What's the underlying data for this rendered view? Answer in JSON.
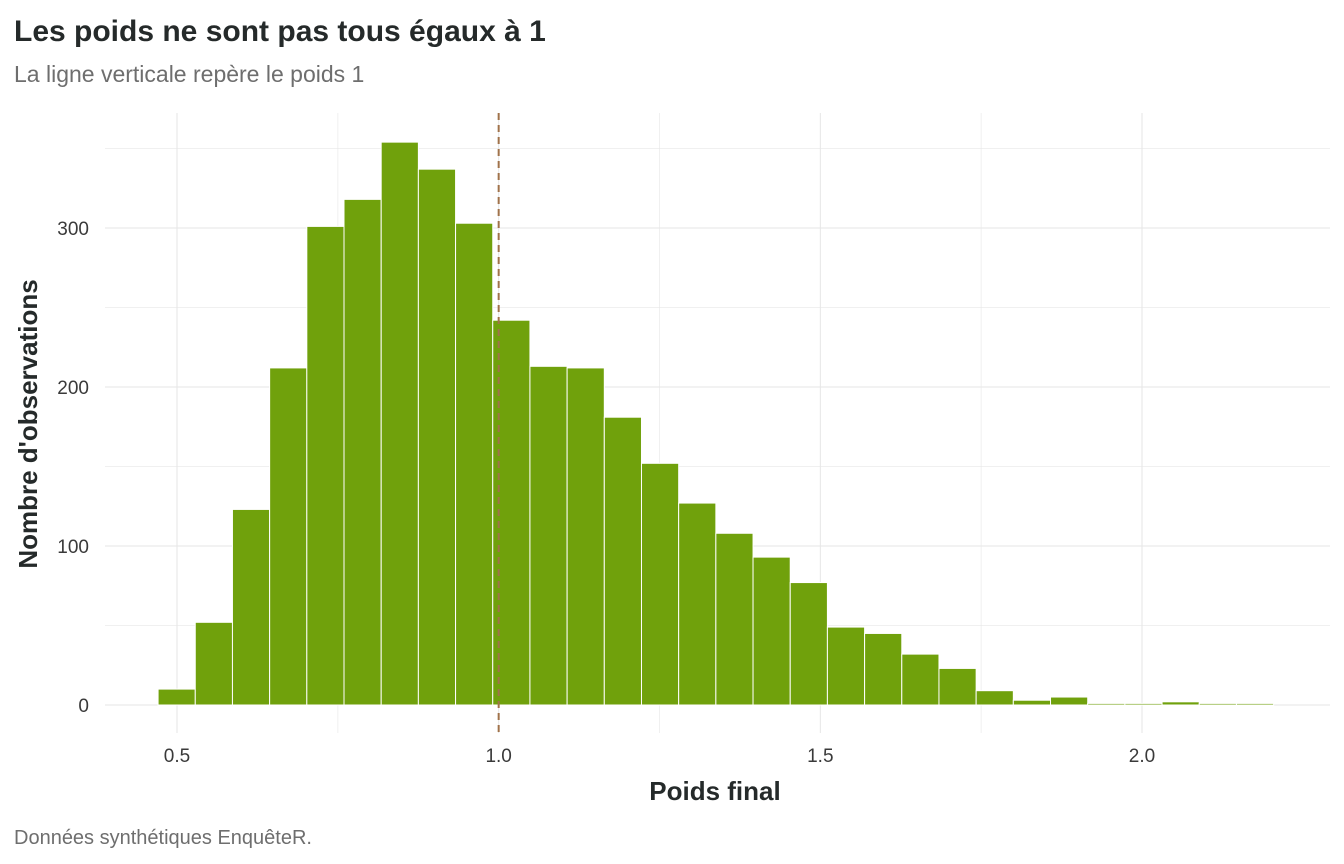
{
  "chart_data": {
    "type": "bar",
    "title": "Les poids ne sont pas tous égaux à 1",
    "subtitle": "La ligne verticale repère le poids 1",
    "xlabel": "Poids final",
    "ylabel": "Nombre d'observations",
    "caption": "Données synthétiques EnquêteR.",
    "xlim": [
      0.42,
      2.25
    ],
    "ylim": [
      0,
      360
    ],
    "x_ticks": [
      0.5,
      1.0,
      1.5,
      2.0
    ],
    "x_tick_labels": [
      "0.5",
      "1.0",
      "1.5",
      "2.0"
    ],
    "y_ticks": [
      0,
      100,
      200,
      300
    ],
    "y_tick_labels": [
      "0",
      "100",
      "200",
      "300"
    ],
    "bin_width": 0.0578,
    "bins": [
      {
        "x": 0.4995,
        "count": 10
      },
      {
        "x": 0.5573,
        "count": 52
      },
      {
        "x": 0.6151,
        "count": 123
      },
      {
        "x": 0.6729,
        "count": 212
      },
      {
        "x": 0.7307,
        "count": 301
      },
      {
        "x": 0.7885,
        "count": 318
      },
      {
        "x": 0.8463,
        "count": 354
      },
      {
        "x": 0.9041,
        "count": 337
      },
      {
        "x": 0.9619,
        "count": 303
      },
      {
        "x": 1.0197,
        "count": 242
      },
      {
        "x": 1.0775,
        "count": 213
      },
      {
        "x": 1.1353,
        "count": 212
      },
      {
        "x": 1.1931,
        "count": 181
      },
      {
        "x": 1.2509,
        "count": 152
      },
      {
        "x": 1.3087,
        "count": 127
      },
      {
        "x": 1.3665,
        "count": 108
      },
      {
        "x": 1.4243,
        "count": 93
      },
      {
        "x": 1.4821,
        "count": 77
      },
      {
        "x": 1.5399,
        "count": 49
      },
      {
        "x": 1.5977,
        "count": 45
      },
      {
        "x": 1.6555,
        "count": 32
      },
      {
        "x": 1.7133,
        "count": 23
      },
      {
        "x": 1.7711,
        "count": 9
      },
      {
        "x": 1.8289,
        "count": 3
      },
      {
        "x": 1.8867,
        "count": 5
      },
      {
        "x": 1.9445,
        "count": 1
      },
      {
        "x": 2.0023,
        "count": 1
      },
      {
        "x": 2.0601,
        "count": 2
      },
      {
        "x": 2.1179,
        "count": 1
      },
      {
        "x": 2.1757,
        "count": 1
      }
    ],
    "reference_line": {
      "x": 1.0,
      "style": "dashed",
      "color": "#a0724a"
    },
    "bar_color": "#70a10c",
    "bar_outline": "#ffffff",
    "grid": true
  }
}
